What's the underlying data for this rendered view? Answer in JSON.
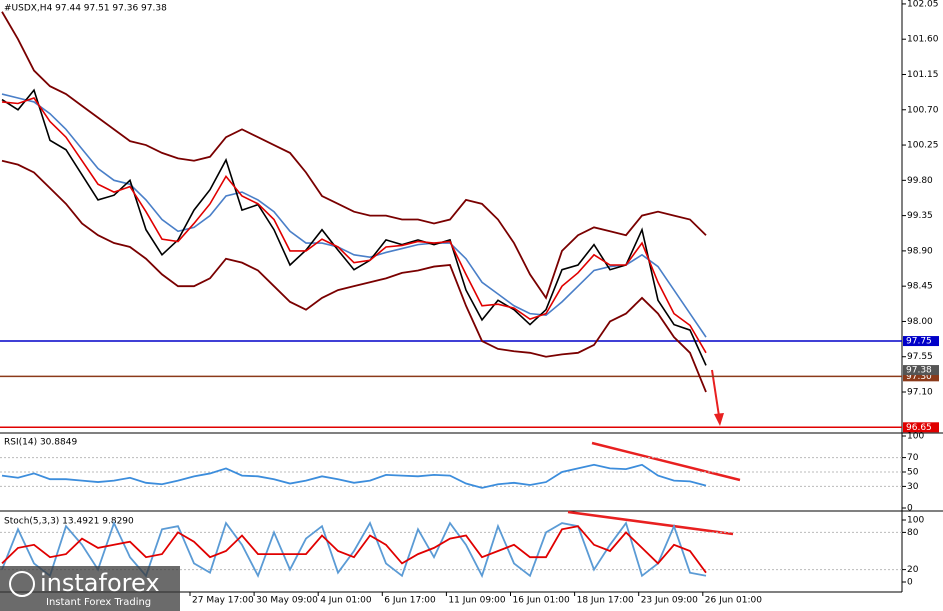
{
  "chart_data": [
    {
      "type": "line",
      "title": "#USDX,H4 97.44 97.51 97.36 97.38",
      "ylim": [
        96.59,
        102.1
      ],
      "yticks": [
        102.05,
        {
          "value": 101.6,
          "label": "101.60"
        },
        101.15,
        {
          "value": 100.7,
          "label": "100.70"
        },
        100.25,
        {
          "value": 99.8,
          "label": "99.80"
        },
        99.35,
        {
          "value": 98.9,
          "label": "98.90"
        },
        98.45,
        {
          "value": 98,
          "label": "98.00"
        },
        97.55,
        {
          "value": 97.1,
          "label": "97.10"
        }
      ],
      "levels": [
        {
          "value": 97.75,
          "color": "#0000c8"
        },
        {
          "value": 97.3,
          "label": "97.30",
          "color": "#8b3a1a"
        },
        {
          "value": 96.65,
          "color": "#e00000"
        }
      ],
      "last_price": 97.38,
      "xtick_labels": [
        "27 May 17:00",
        "30 May 09:00",
        "4 Jun 01:00",
        "6 Jun 17:00",
        "11 Jun 09:00",
        "16 Jun 01:00",
        "18 Jun 17:00",
        "23 Jun 09:00",
        "26 Jun 01:00"
      ],
      "series": [
        {
          "color": "#7a0000",
          "values": [
            101.95,
            101.6,
            101.2,
            101.0,
            100.9,
            100.75,
            100.6,
            100.45,
            100.3,
            100.25,
            100.15,
            100.08,
            100.05,
            100.1,
            100.35,
            100.45,
            100.35,
            100.25,
            100.15,
            99.9,
            99.6,
            99.5,
            99.4,
            99.35,
            99.35,
            99.3,
            99.3,
            99.25,
            99.3,
            99.55,
            99.5,
            99.3,
            99.0,
            98.6,
            98.3,
            98.9,
            99.1,
            99.2,
            99.15,
            99.1,
            99.35,
            99.4,
            99.35,
            99.3,
            99.1
          ]
        },
        {
          "color": "#7a0000",
          "values": [
            100.05,
            100.0,
            99.9,
            99.7,
            99.5,
            99.25,
            99.1,
            99.0,
            98.95,
            98.8,
            98.6,
            98.45,
            98.45,
            98.55,
            98.8,
            98.75,
            98.65,
            98.45,
            98.25,
            98.15,
            98.3,
            98.4,
            98.45,
            98.5,
            98.55,
            98.62,
            98.65,
            98.7,
            98.72,
            98.2,
            97.75,
            97.65,
            97.62,
            97.6,
            97.55,
            97.58,
            97.6,
            97.7,
            98.0,
            98.1,
            98.3,
            98.1,
            97.8,
            97.6,
            97.1
          ]
        },
        {
          "color": "#4a7fc8",
          "values": [
            100.9,
            100.85,
            100.8,
            100.65,
            100.45,
            100.2,
            99.95,
            99.8,
            99.75,
            99.55,
            99.3,
            99.15,
            99.2,
            99.35,
            99.6,
            99.65,
            99.55,
            99.4,
            99.15,
            99.0,
            99.0,
            98.95,
            98.85,
            98.82,
            98.88,
            98.93,
            98.98,
            99.0,
            99.0,
            98.8,
            98.5,
            98.35,
            98.2,
            98.1,
            98.08,
            98.25,
            98.45,
            98.65,
            98.7,
            98.72,
            98.85,
            98.7,
            98.4,
            98.1,
            97.8
          ]
        },
        {
          "color": "#000000",
          "values": [
            100.83,
            100.7,
            100.95,
            100.31,
            100.19,
            99.87,
            99.55,
            99.61,
            99.8,
            99.17,
            98.85,
            99.04,
            99.42,
            99.68,
            100.06,
            99.42,
            99.49,
            99.17,
            98.72,
            98.91,
            99.17,
            98.91,
            98.66,
            98.78,
            99.04,
            98.98,
            99.04,
            98.98,
            99.04,
            98.4,
            98.02,
            98.27,
            98.15,
            97.96,
            98.15,
            98.66,
            98.72,
            98.98,
            98.66,
            98.72,
            99.17,
            98.27,
            97.96,
            97.89,
            97.44
          ]
        },
        {
          "color": "#e00000",
          "values": [
            100.8,
            100.78,
            100.85,
            100.55,
            100.35,
            100.05,
            99.75,
            99.65,
            99.72,
            99.4,
            99.05,
            99.02,
            99.25,
            99.5,
            99.85,
            99.6,
            99.5,
            99.3,
            98.9,
            98.9,
            99.05,
            98.95,
            98.75,
            98.78,
            98.95,
            98.97,
            99.02,
            99.0,
            99.02,
            98.6,
            98.2,
            98.22,
            98.17,
            98.03,
            98.1,
            98.45,
            98.62,
            98.85,
            98.72,
            98.72,
            99.0,
            98.5,
            98.1,
            97.95,
            97.6
          ]
        }
      ]
    },
    {
      "type": "line",
      "title": "RSI(14) 30.8849",
      "ylim": [
        0,
        100
      ],
      "yticks": [
        100,
        70,
        50,
        30,
        0
      ],
      "series": [
        {
          "color": "#3c8ddc",
          "values": [
            45,
            42,
            48,
            40,
            40,
            38,
            36,
            38,
            42,
            35,
            33,
            38,
            44,
            48,
            55,
            45,
            44,
            40,
            34,
            38,
            44,
            40,
            35,
            38,
            46,
            45,
            44,
            46,
            45,
            34,
            28,
            33,
            35,
            32,
            36,
            50,
            55,
            60,
            55,
            54,
            60,
            45,
            38,
            37,
            31
          ]
        }
      ]
    },
    {
      "type": "line",
      "title": "Stoch(5,3,3) 13.4921 9.8290",
      "ylim": [
        0,
        100
      ],
      "yticks": [
        100,
        80,
        20,
        0
      ],
      "series": [
        {
          "color": "#5b9bd5",
          "values": [
            20,
            85,
            30,
            10,
            90,
            60,
            20,
            95,
            40,
            10,
            85,
            90,
            30,
            15,
            95,
            60,
            10,
            80,
            20,
            70,
            90,
            15,
            50,
            95,
            30,
            10,
            85,
            40,
            95,
            60,
            10,
            90,
            30,
            10,
            80,
            95,
            90,
            20,
            60,
            95,
            10,
            30,
            90,
            15,
            10
          ]
        },
        {
          "color": "#e00000",
          "values": [
            30,
            55,
            60,
            40,
            45,
            70,
            55,
            60,
            65,
            40,
            45,
            80,
            65,
            40,
            50,
            75,
            45,
            45,
            45,
            45,
            75,
            50,
            40,
            75,
            60,
            30,
            45,
            55,
            70,
            75,
            40,
            50,
            60,
            40,
            40,
            85,
            90,
            60,
            50,
            80,
            55,
            30,
            60,
            50,
            15
          ]
        }
      ]
    }
  ],
  "watermark": {
    "brand": "instaforex",
    "tagline": "Instant Forex Trading"
  }
}
